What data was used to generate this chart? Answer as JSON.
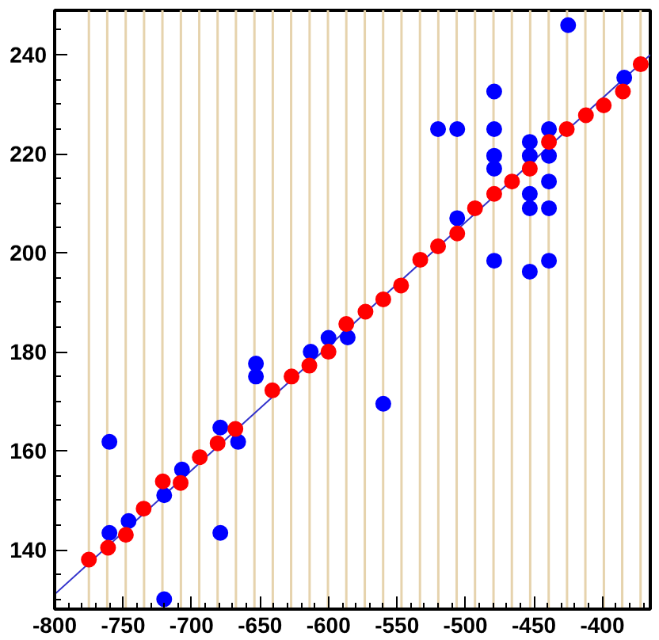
{
  "chart_data": {
    "type": "scatter",
    "xlim": [
      -800,
      -365
    ],
    "ylim": [
      128,
      249
    ],
    "xticks": [
      -800,
      -750,
      -700,
      -650,
      -600,
      -550,
      -500,
      -450,
      -400
    ],
    "yticks": [
      140,
      160,
      180,
      200,
      220,
      240
    ],
    "grid": false,
    "marker": "circle",
    "series": [
      {
        "color": "#0000ff",
        "x": [
          -760,
          -760,
          -746,
          -720,
          -720,
          -707,
          -679,
          -679,
          -666,
          -653,
          -653,
          -613,
          -600,
          -586,
          -560,
          -425,
          -384,
          -520,
          -506,
          -506,
          -479,
          -479,
          -479,
          -479,
          -479,
          -453,
          -453,
          -453,
          -453,
          -453,
          -439,
          -439,
          -439,
          -439,
          -439
        ],
        "values": [
          161.8,
          143.4,
          145.8,
          151,
          130,
          156.2,
          164.7,
          143.4,
          161.8,
          177.6,
          175,
          180,
          182.8,
          182.9,
          169.5,
          246,
          235.4,
          225,
          225,
          207,
          232.6,
          225,
          219.6,
          217,
          198.4,
          222.4,
          219.6,
          211.9,
          209,
          196.2,
          225,
          219.6,
          214.4,
          209,
          198.4
        ]
      },
      {
        "color": "#ff0000",
        "x": [
          -775,
          -761,
          -748,
          -735,
          -721,
          -708,
          -694,
          -681,
          -668,
          -641,
          -627,
          -614,
          -600,
          -587,
          -573,
          -560,
          -547,
          -533,
          -520,
          -506,
          -493,
          -479,
          -466,
          -453,
          -439,
          -426,
          -412,
          -399,
          -385,
          -372
        ],
        "values": [
          138,
          140.4,
          143,
          148.3,
          153.8,
          153.5,
          158.7,
          161.5,
          164.4,
          172.2,
          175,
          177.2,
          180,
          185.6,
          188.1,
          190.6,
          193.4,
          198.6,
          201.3,
          203.9,
          209,
          211.9,
          214.4,
          217,
          222.4,
          225,
          227.8,
          229.8,
          232.6,
          238.1
        ]
      },
      {
        "type": "line",
        "color": "#3333cc",
        "marker": "none",
        "x": [
          -800,
          -365
        ],
        "values": [
          131,
          240
        ]
      }
    ],
    "ref_lines": [
      {
        "axis": "x",
        "value": -775,
        "color": "#e6d3ad"
      },
      {
        "axis": "x",
        "value": -761.6,
        "color": "#e6d3ad"
      },
      {
        "axis": "x",
        "value": -748.1,
        "color": "#e6d3ad"
      },
      {
        "axis": "x",
        "value": -734.7,
        "color": "#e6d3ad"
      },
      {
        "axis": "x",
        "value": -721.3,
        "color": "#e6d3ad"
      },
      {
        "axis": "x",
        "value": -707.8,
        "color": "#e6d3ad"
      },
      {
        "axis": "x",
        "value": -694.4,
        "color": "#e6d3ad"
      },
      {
        "axis": "x",
        "value": -681,
        "color": "#e6d3ad"
      },
      {
        "axis": "x",
        "value": -667.6,
        "color": "#e6d3ad"
      },
      {
        "axis": "x",
        "value": -654.1,
        "color": "#e6d3ad"
      },
      {
        "axis": "x",
        "value": -640.7,
        "color": "#e6d3ad"
      },
      {
        "axis": "x",
        "value": -627.3,
        "color": "#e6d3ad"
      },
      {
        "axis": "x",
        "value": -613.8,
        "color": "#e6d3ad"
      },
      {
        "axis": "x",
        "value": -600.4,
        "color": "#e6d3ad"
      },
      {
        "axis": "x",
        "value": -587,
        "color": "#e6d3ad"
      },
      {
        "axis": "x",
        "value": -573.5,
        "color": "#e6d3ad"
      },
      {
        "axis": "x",
        "value": -560.1,
        "color": "#e6d3ad"
      },
      {
        "axis": "x",
        "value": -546.7,
        "color": "#e6d3ad"
      },
      {
        "axis": "x",
        "value": -533.2,
        "color": "#e6d3ad"
      },
      {
        "axis": "x",
        "value": -519.8,
        "color": "#e6d3ad"
      },
      {
        "axis": "x",
        "value": -506.4,
        "color": "#e6d3ad"
      },
      {
        "axis": "x",
        "value": -493,
        "color": "#e6d3ad"
      },
      {
        "axis": "x",
        "value": -479.5,
        "color": "#e6d3ad"
      },
      {
        "axis": "x",
        "value": -466.1,
        "color": "#e6d3ad"
      },
      {
        "axis": "x",
        "value": -452.7,
        "color": "#e6d3ad"
      },
      {
        "axis": "x",
        "value": -439.2,
        "color": "#e6d3ad"
      },
      {
        "axis": "x",
        "value": -425.8,
        "color": "#e6d3ad"
      },
      {
        "axis": "x",
        "value": -412.4,
        "color": "#e6d3ad"
      },
      {
        "axis": "x",
        "value": -398.9,
        "color": "#e6d3ad"
      },
      {
        "axis": "x",
        "value": -385.5,
        "color": "#e6d3ad"
      },
      {
        "axis": "x",
        "value": -372.1,
        "color": "#e6d3ad"
      }
    ]
  }
}
